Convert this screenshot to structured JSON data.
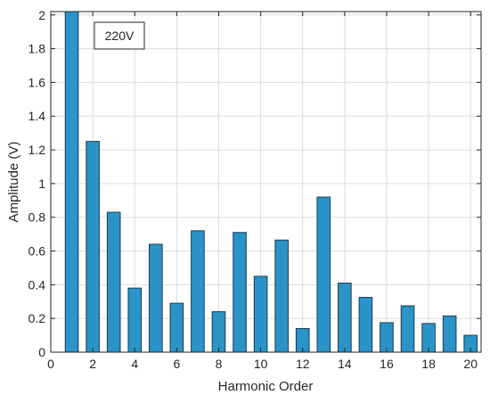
{
  "chart_data": {
    "type": "bar",
    "title": "",
    "xlabel": "Harmonic Order",
    "ylabel": "Amplitude (V)",
    "annotation": "220V",
    "x": [
      1,
      2,
      3,
      4,
      5,
      6,
      7,
      8,
      9,
      10,
      11,
      12,
      13,
      14,
      15,
      16,
      17,
      18,
      19,
      20
    ],
    "values": [
      2.02,
      1.25,
      0.83,
      0.38,
      0.64,
      0.29,
      0.72,
      0.24,
      0.71,
      0.45,
      0.665,
      0.14,
      0.92,
      0.41,
      0.325,
      0.175,
      0.275,
      0.17,
      0.215,
      0.1
    ],
    "xlim": [
      0,
      20.5
    ],
    "ylim": [
      0,
      2.02
    ],
    "xticks": [
      0,
      2,
      4,
      6,
      8,
      10,
      12,
      14,
      16,
      18,
      20
    ],
    "xtick_labels": [
      "0",
      "2",
      "4",
      "6",
      "8",
      "10",
      "12",
      "14",
      "16",
      "18",
      "20"
    ],
    "yticks": [
      0,
      0.2,
      0.4,
      0.6,
      0.8,
      1.0,
      1.2,
      1.4,
      1.6,
      1.8,
      2.0
    ],
    "ytick_labels": [
      "0",
      "0.2",
      "0.4",
      "0.6",
      "0.8",
      "1",
      "1.2",
      "1.4",
      "1.6",
      "1.8",
      "2"
    ],
    "grid": true,
    "bar_color": "#2a93c8",
    "bar_edge_color": "#1b3a52"
  }
}
